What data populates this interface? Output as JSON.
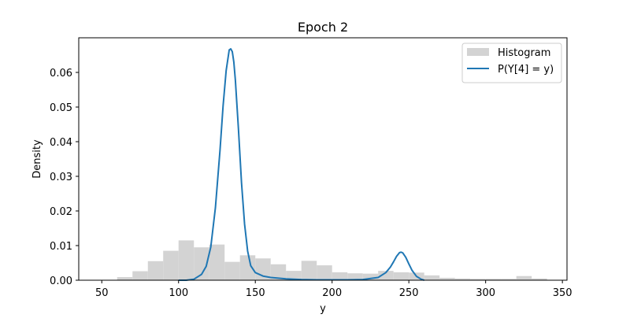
{
  "chart_data": {
    "type": "bar",
    "title": "Epoch 2",
    "xlabel": "y",
    "ylabel": "Density",
    "xlim": [
      35,
      353
    ],
    "ylim": [
      0,
      0.07
    ],
    "xticks": [
      50,
      100,
      150,
      200,
      250,
      300,
      350
    ],
    "yticks": [
      0.0,
      0.01,
      0.02,
      0.03,
      0.04,
      0.05,
      0.06
    ],
    "ytick_labels": [
      "0.00",
      "0.01",
      "0.02",
      "0.03",
      "0.04",
      "0.05",
      "0.06"
    ],
    "grid": false,
    "legend": {
      "placement": "top-right",
      "entries": [
        {
          "label": "Histogram",
          "kind": "patch",
          "color": "#d3d3d3"
        },
        {
          "label": "P(Y[4] = y)",
          "kind": "line",
          "color": "#1f77b4"
        }
      ]
    },
    "histogram": {
      "name": "Histogram",
      "color": "#d3d3d3",
      "bins": [
        {
          "x0": 60,
          "x1": 70,
          "density": 0.0009
        },
        {
          "x0": 70,
          "x1": 80,
          "density": 0.0026
        },
        {
          "x0": 80,
          "x1": 90,
          "density": 0.0055
        },
        {
          "x0": 90,
          "x1": 100,
          "density": 0.0085
        },
        {
          "x0": 100,
          "x1": 110,
          "density": 0.0115
        },
        {
          "x0": 110,
          "x1": 120,
          "density": 0.0095
        },
        {
          "x0": 120,
          "x1": 130,
          "density": 0.0103
        },
        {
          "x0": 130,
          "x1": 140,
          "density": 0.0053
        },
        {
          "x0": 140,
          "x1": 150,
          "density": 0.0072
        },
        {
          "x0": 150,
          "x1": 160,
          "density": 0.0063
        },
        {
          "x0": 160,
          "x1": 170,
          "density": 0.0046
        },
        {
          "x0": 170,
          "x1": 180,
          "density": 0.0027
        },
        {
          "x0": 180,
          "x1": 190,
          "density": 0.0056
        },
        {
          "x0": 190,
          "x1": 200,
          "density": 0.0043
        },
        {
          "x0": 200,
          "x1": 210,
          "density": 0.0023
        },
        {
          "x0": 210,
          "x1": 220,
          "density": 0.002
        },
        {
          "x0": 220,
          "x1": 230,
          "density": 0.0019
        },
        {
          "x0": 230,
          "x1": 240,
          "density": 0.0027
        },
        {
          "x0": 240,
          "x1": 250,
          "density": 0.0023
        },
        {
          "x0": 250,
          "x1": 260,
          "density": 0.0022
        },
        {
          "x0": 260,
          "x1": 270,
          "density": 0.0014
        },
        {
          "x0": 270,
          "x1": 280,
          "density": 0.0007
        },
        {
          "x0": 280,
          "x1": 290,
          "density": 0.0005
        },
        {
          "x0": 290,
          "x1": 300,
          "density": 0.0004
        },
        {
          "x0": 300,
          "x1": 310,
          "density": 0.0004
        },
        {
          "x0": 310,
          "x1": 320,
          "density": 0.0004
        },
        {
          "x0": 320,
          "x1": 330,
          "density": 0.0012
        },
        {
          "x0": 330,
          "x1": 340,
          "density": 0.0005
        }
      ]
    },
    "series": [
      {
        "name": "P(Y[4] = y)",
        "type": "line",
        "color": "#1f77b4",
        "x": [
          100,
          105,
          110,
          115,
          118,
          121,
          124,
          127,
          129,
          131,
          133,
          134,
          135,
          136,
          137,
          139,
          141,
          143,
          145,
          147,
          150,
          155,
          160,
          170,
          180,
          190,
          200,
          210,
          220,
          230,
          235,
          238,
          240,
          242,
          244,
          245,
          246,
          248,
          250,
          252,
          255,
          258,
          260
        ],
        "y": [
          0.0,
          0.0,
          0.0003,
          0.0017,
          0.004,
          0.0096,
          0.0209,
          0.0375,
          0.0503,
          0.0605,
          0.0665,
          0.0668,
          0.066,
          0.063,
          0.0578,
          0.0437,
          0.0282,
          0.0162,
          0.0084,
          0.0042,
          0.0022,
          0.0012,
          0.0008,
          0.0004,
          0.0002,
          0.0001,
          0.0001,
          0.0001,
          0.0002,
          0.0008,
          0.0022,
          0.0038,
          0.0053,
          0.0069,
          0.008,
          0.0081,
          0.0079,
          0.0066,
          0.0047,
          0.0029,
          0.0011,
          0.0003,
          0.0
        ]
      }
    ]
  }
}
